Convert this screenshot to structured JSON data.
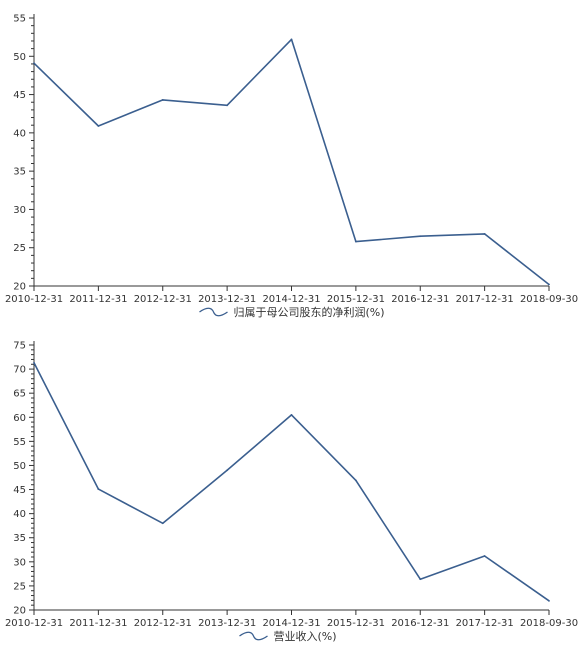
{
  "chart_data": [
    {
      "type": "line",
      "categories": [
        "2010-12-31",
        "2011-12-31",
        "2012-12-31",
        "2013-12-31",
        "2014-12-31",
        "2015-12-31",
        "2016-12-31",
        "2017-12-31",
        "2018-09-30"
      ],
      "series": [
        {
          "name": "归属于母公司股东的净利润(%)",
          "values": [
            49.1,
            40.9,
            44.3,
            43.6,
            52.2,
            25.8,
            26.5,
            26.8,
            20.2
          ],
          "color": "#3b5f8f"
        }
      ],
      "ylim": [
        20,
        55
      ],
      "yticks": [
        20,
        25,
        30,
        35,
        40,
        45,
        50,
        55
      ],
      "legend_position": "bottom-center",
      "grid": false
    },
    {
      "type": "line",
      "categories": [
        "2010-12-31",
        "2011-12-31",
        "2012-12-31",
        "2013-12-31",
        "2014-12-31",
        "2015-12-31",
        "2016-12-31",
        "2017-12-31",
        "2018-09-30"
      ],
      "series": [
        {
          "name": "营业收入(%)",
          "values": [
            71.3,
            45.1,
            38.0,
            49.0,
            60.5,
            46.9,
            26.4,
            31.2,
            21.9
          ],
          "color": "#3b5f8f"
        }
      ],
      "ylim": [
        20,
        75
      ],
      "yticks": [
        20,
        25,
        30,
        35,
        40,
        45,
        50,
        55,
        60,
        65,
        70,
        75
      ],
      "legend_position": "bottom-center",
      "grid": false
    }
  ]
}
